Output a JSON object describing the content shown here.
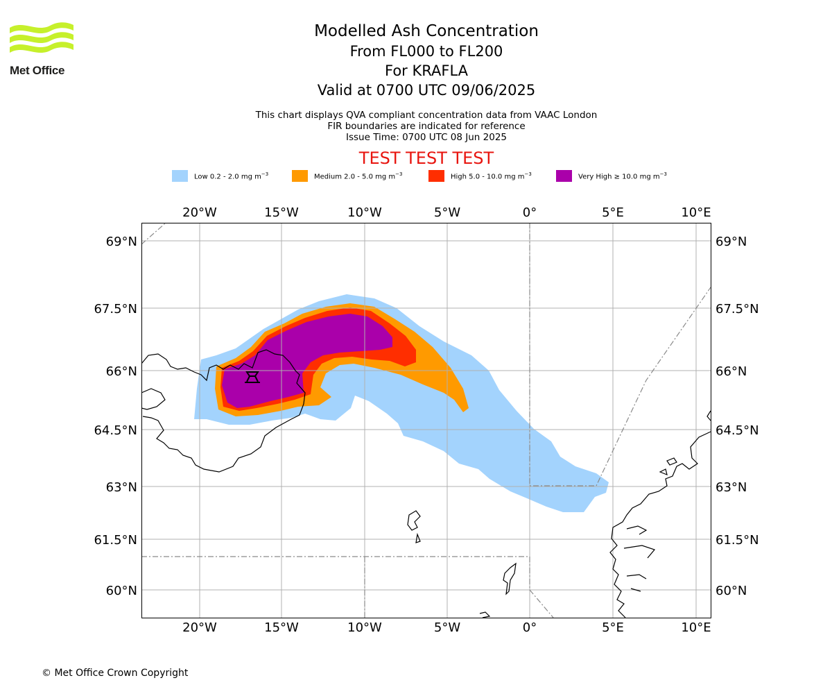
{
  "header": {
    "title": "Modelled Ash Concentration",
    "levels": "From FL000 to FL200",
    "volcano": "For KRAFLA",
    "valid": "Valid at 0700 UTC 09/06/2025",
    "note1": "This chart displays QVA compliant concentration data from VAAC London",
    "note2": "FIR boundaries are indicated for reference",
    "issue": "Issue Time: 0700 UTC 08 Jun 2025",
    "test_banner": "TEST TEST TEST"
  },
  "logo": {
    "text": "Met Office",
    "color": "#c6f02b"
  },
  "legend": [
    {
      "label": "Low 0.2 - 2.0 mg m",
      "sup": "−3",
      "color": "#a3d3fd"
    },
    {
      "label": "Medium 2.0 - 5.0 mg m",
      "sup": "−3",
      "color": "#ff9a00"
    },
    {
      "label": "High 5.0 - 10.0 mg m",
      "sup": "−3",
      "color": "#ff2e00"
    },
    {
      "label": "Very High  ≥  10.0 mg m",
      "sup": "−3",
      "color": "#aa00aa"
    }
  ],
  "axes": {
    "lon_ticks": [
      "20°W",
      "15°W",
      "10°W",
      "5°W",
      "0°",
      "5°E",
      "10°E"
    ],
    "lon_values": [
      -20,
      -15,
      -10,
      -5,
      0,
      5,
      10
    ],
    "lat_ticks": [
      "69°N",
      "67.5°N",
      "66°N",
      "64.5°N",
      "63°N",
      "61.5°N",
      "60°N"
    ],
    "lat_values": [
      69,
      67.5,
      66,
      64.5,
      63,
      61.5,
      60
    ],
    "lon_range": [
      -23.5,
      11
    ],
    "lat_range": [
      59.3,
      69.5
    ],
    "grid": true
  },
  "footer": {
    "copyright": "© Met Office Crown Copyright"
  }
}
